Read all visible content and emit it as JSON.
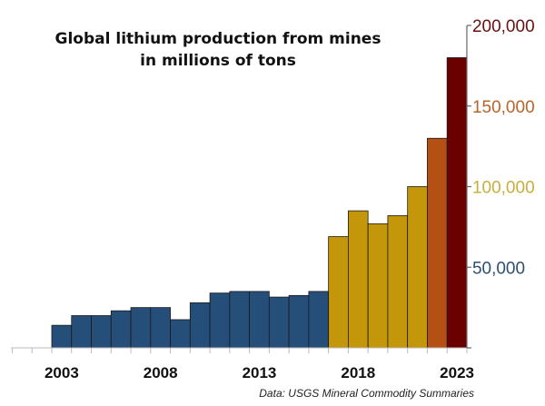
{
  "chart_data": {
    "type": "bar",
    "title_lines": [
      "Global lithium production from mines",
      "in millions of tons"
    ],
    "source": "Data: USGS Mineral Commodity Summaries",
    "x_start": 2001,
    "categories": [
      2003,
      2004,
      2005,
      2006,
      2007,
      2008,
      2009,
      2010,
      2011,
      2012,
      2013,
      2014,
      2015,
      2016,
      2017,
      2018,
      2019,
      2020,
      2021,
      2022,
      2023
    ],
    "values": [
      14000,
      20000,
      20000,
      23000,
      25000,
      25000,
      17500,
      28000,
      34000,
      35000,
      35000,
      31500,
      32500,
      35000,
      69000,
      85000,
      77000,
      82000,
      100000,
      130000,
      180000
    ],
    "bar_colors": [
      "#254e78",
      "#254e78",
      "#254e78",
      "#254e78",
      "#254e78",
      "#254e78",
      "#254e78",
      "#254e78",
      "#254e78",
      "#254e78",
      "#254e78",
      "#254e78",
      "#254e78",
      "#254e78",
      "#c4960a",
      "#c4960a",
      "#c4960a",
      "#c4960a",
      "#c4960a",
      "#b55014",
      "#6b0000"
    ],
    "x_tick_labels": [
      "2003",
      "2008",
      "2013",
      "2018",
      "2023"
    ],
    "y_ticks": [
      {
        "value": 50000,
        "label": "50,000",
        "color": "#2f4f70"
      },
      {
        "value": 100000,
        "label": "100,000",
        "color": "#c8ae3c"
      },
      {
        "value": 150000,
        "label": "150,000",
        "color": "#b8642a"
      },
      {
        "value": 200000,
        "label": "200,000",
        "color": "#6b1010"
      }
    ],
    "ylim": [
      0,
      200000
    ],
    "y_axis_position": "right",
    "grid": false,
    "xlabel": "",
    "ylabel": ""
  }
}
